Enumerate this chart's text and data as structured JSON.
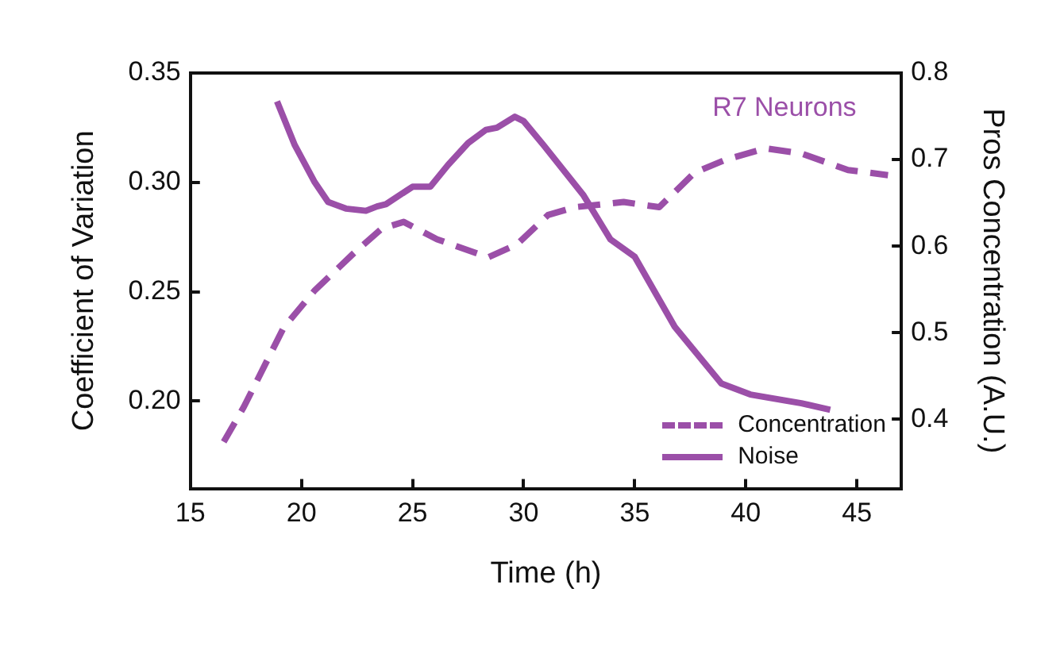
{
  "chart_data": {
    "type": "line",
    "xlabel": "Time (h)",
    "ylabel": "Coefficient of Variation",
    "y2label": "Pros Concentration (A.U.)",
    "xlim": [
      15,
      47
    ],
    "xticks": [
      15,
      20,
      25,
      30,
      35,
      40,
      45
    ],
    "ylim": [
      0.16,
      0.35
    ],
    "yticks": [
      {
        "value": 0.2,
        "label": "0.20"
      },
      0.25,
      {
        "value": 0.3,
        "label": "0.30"
      },
      0.35
    ],
    "y2lim": [
      0.32,
      0.8
    ],
    "y2ticks": [
      0.4,
      0.5,
      0.6,
      0.7,
      0.8
    ],
    "grid": false,
    "legend": "bottom right",
    "marker": "none",
    "annotations": [
      "R7 Neurons"
    ],
    "series": [
      {
        "name": "Concentration",
        "color": "#9b4fa8",
        "axis": "y2",
        "line_style": "dashed",
        "x": [
          16.5,
          17.4,
          19.2,
          20.6,
          22.4,
          23.6,
          24.6,
          26.1,
          28.4,
          29.7,
          31.1,
          32.3,
          34.5,
          36.1,
          37.7,
          39.1,
          40.9,
          42.5,
          44.6,
          46.4
        ],
        "values": [
          0.374,
          0.414,
          0.506,
          0.549,
          0.593,
          0.62,
          0.628,
          0.608,
          0.587,
          0.602,
          0.636,
          0.645,
          0.651,
          0.645,
          0.685,
          0.7,
          0.713,
          0.707,
          0.688,
          0.682
        ]
      },
      {
        "name": "Noise",
        "color": "#9b4fa8",
        "axis": "y",
        "line_style": "solid",
        "x": [
          18.9,
          19.7,
          20.6,
          21.2,
          22.0,
          22.9,
          23.4,
          23.8,
          25.0,
          25.8,
          26.6,
          27.5,
          28.3,
          28.8,
          29.6,
          30.0,
          30.9,
          32.7,
          33.9,
          35.0,
          36.8,
          38.9,
          40.2,
          42.5,
          43.8
        ],
        "values": [
          0.337,
          0.317,
          0.3,
          0.291,
          0.288,
          0.287,
          0.289,
          0.29,
          0.298,
          0.298,
          0.308,
          0.318,
          0.324,
          0.325,
          0.33,
          0.328,
          0.317,
          0.294,
          0.274,
          0.266,
          0.234,
          0.208,
          0.203,
          0.199,
          0.196
        ]
      }
    ]
  }
}
